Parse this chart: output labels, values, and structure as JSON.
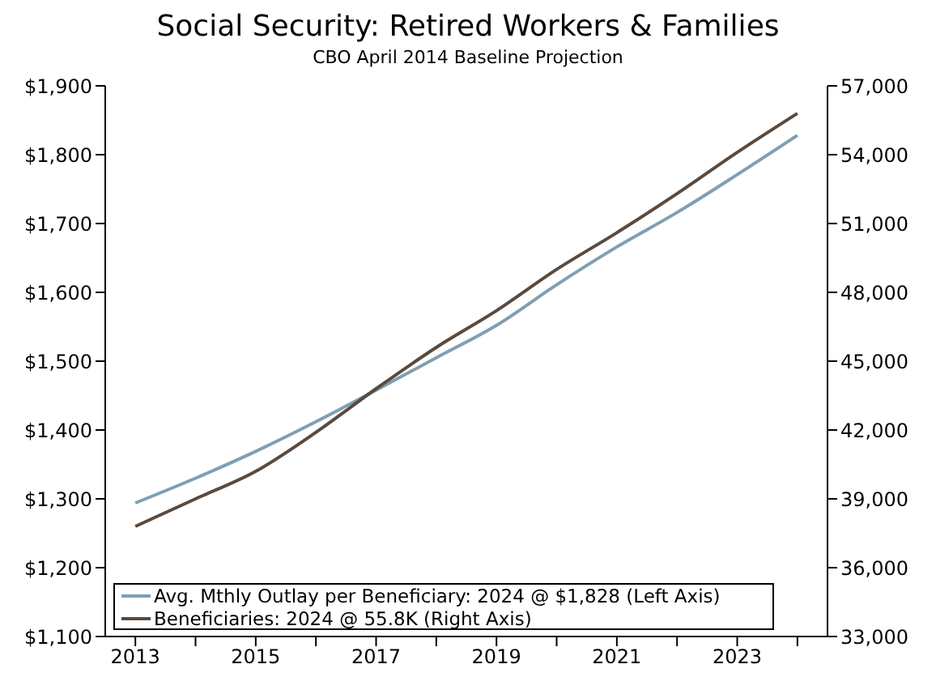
{
  "chart_data": {
    "type": "line",
    "title": "Social Security: Retired Workers & Families",
    "subtitle": "CBO April 2014 Baseline Projection",
    "categories": [
      "2013",
      null,
      "2015",
      null,
      "2017",
      null,
      "2019",
      null,
      "2021",
      null,
      "2023",
      null
    ],
    "series": [
      {
        "name": "Avg. Mthly Outlay per Beneficiary: 2024 @ $1,828 (Left Axis)",
        "color": "#7f9fb3",
        "values": [
          1294,
          1330,
          1369,
          1412,
          1458,
          1505,
          1552,
          1611,
          1666,
          1716,
          1771,
          1828
        ]
      },
      {
        "name": "Beneficiaries: 2024 @ 55.8K (Right Axis)",
        "color": "#5a4a3e",
        "axis": "y2",
        "values": [
          37800,
          39000,
          40200,
          41900,
          43800,
          45600,
          47200,
          49000,
          50600,
          52300,
          54100,
          55800
        ]
      }
    ],
    "ylim": [
      1100,
      1900
    ],
    "yticks": [
      {
        "value": 1100,
        "label": "$1,100"
      },
      {
        "value": 1200,
        "label": "$1,200"
      },
      {
        "value": 1300,
        "label": "$1,300"
      },
      {
        "value": 1400,
        "label": "$1,400"
      },
      {
        "value": 1500,
        "label": "$1,500"
      },
      {
        "value": 1600,
        "label": "$1,600"
      },
      {
        "value": 1700,
        "label": "$1,700"
      },
      {
        "value": 1800,
        "label": "$1,800"
      },
      {
        "value": 1900,
        "label": "$1,900"
      }
    ],
    "y2lim": [
      33000,
      57000
    ],
    "y2ticks": [
      {
        "value": 33000,
        "label": "33,000"
      },
      {
        "value": 36000,
        "label": "36,000"
      },
      {
        "value": 39000,
        "label": "39,000"
      },
      {
        "value": 42000,
        "label": "42,000"
      },
      {
        "value": 45000,
        "label": "45,000"
      },
      {
        "value": 48000,
        "label": "48,000"
      },
      {
        "value": 51000,
        "label": "51,000"
      },
      {
        "value": 54000,
        "label": "54,000"
      },
      {
        "value": 57000,
        "label": "57,000"
      }
    ],
    "grid": false,
    "legend": "bottom left",
    "marker": "none",
    "line_style": "solid"
  }
}
